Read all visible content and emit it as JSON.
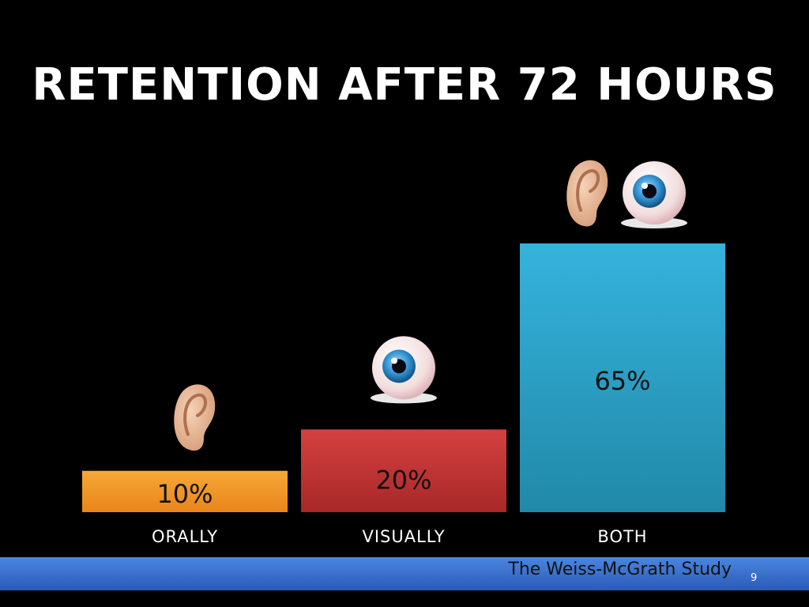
{
  "slide": {
    "title": "RETENTION AFTER 72 HOURS",
    "footer": "The Weiss-McGrath Study",
    "page_number": "9"
  },
  "chart_data": {
    "type": "bar",
    "title": "RETENTION AFTER 72 HOURS",
    "categories": [
      "ORALLY",
      "VISUALLY",
      "BOTH"
    ],
    "values": [
      10,
      20,
      65
    ],
    "labels": [
      "10%",
      "20%",
      "65%"
    ],
    "colors": [
      "#f39a2a",
      "#c93a3a",
      "#2aa3cc"
    ],
    "icons": [
      [
        "ear-icon"
      ],
      [
        "eye-icon"
      ],
      [
        "ear-icon",
        "eye-icon"
      ]
    ],
    "ylim": [
      0,
      65
    ],
    "grid": false,
    "legend": "none"
  }
}
